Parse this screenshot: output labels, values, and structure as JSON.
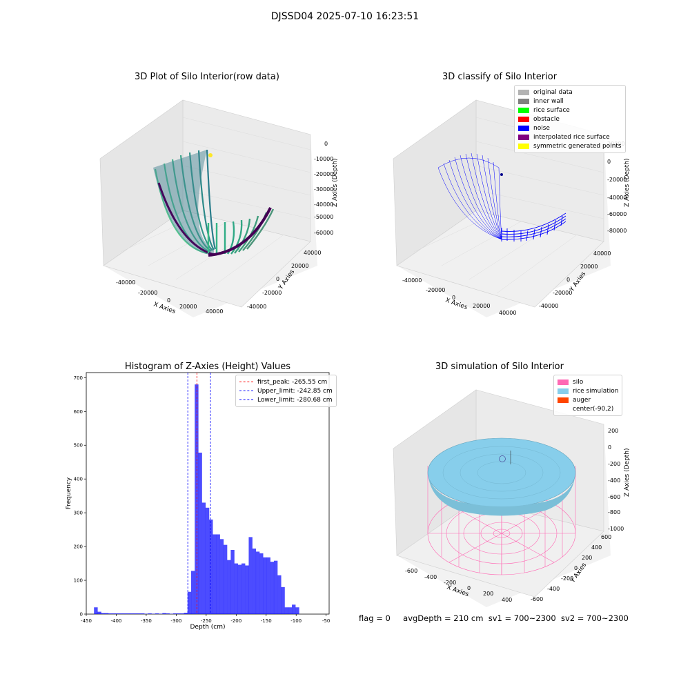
{
  "suptitle": "DJSSD04 2025-07-10 16:23:51",
  "panels": {
    "raw": {
      "title": "3D Plot of Silo Interior(row data)",
      "xlabel": "X Axies",
      "ylabel": "Y Axies",
      "zlabel": "Z Axies (Depth)",
      "xticks": [
        "-40000",
        "-20000",
        "0",
        "20000",
        "40000"
      ],
      "yticks": [
        "40000",
        "20000",
        "0",
        "-20000",
        "-40000"
      ],
      "zticks": [
        "0",
        "-10000",
        "-20000",
        "-30000",
        "-40000",
        "-50000",
        "-60000"
      ]
    },
    "classify": {
      "title": "3D classify of Silo Interior",
      "xlabel": "X Axies",
      "ylabel": "Y Axies",
      "zlabel": "Z Axies (Depth)",
      "xticks": [
        "-40000",
        "-20000",
        "0",
        "20000",
        "40000"
      ],
      "yticks": [
        "40000",
        "20000",
        "0",
        "-20000",
        "-40000"
      ],
      "zticks": [
        "20000",
        "0",
        "-20000",
        "-40000",
        "-60000",
        "-80000"
      ],
      "legend": [
        {
          "label": "original data",
          "color": "#b3b3b3"
        },
        {
          "label": "inner wall",
          "color": "#808080"
        },
        {
          "label": "rice surface",
          "color": "#00ff00"
        },
        {
          "label": "obstacle",
          "color": "#ff0000"
        },
        {
          "label": "noise",
          "color": "#0000ff"
        },
        {
          "label": "interpolated rice surface",
          "color": "#800080"
        },
        {
          "label": "symmetric generated points",
          "color": "#ffff00"
        }
      ]
    },
    "simulation": {
      "title": "3D simulation of Silo Interior",
      "xlabel": "X Axies",
      "ylabel": "Y Axies",
      "zlabel": "Z Axies (Depth)",
      "xticks": [
        "-600",
        "-400",
        "-200",
        "0",
        "200",
        "400"
      ],
      "yticks": [
        "600",
        "400",
        "200",
        "0",
        "-200",
        "-400",
        "-600"
      ],
      "zticks": [
        "200",
        "0",
        "-200",
        "-400",
        "-600",
        "-800",
        "-1000"
      ],
      "legend": [
        {
          "label": "silo",
          "color": "#ff69b4"
        },
        {
          "label": "rice simulation",
          "color": "#87ceeb"
        },
        {
          "label": "auger",
          "color": "#ff4500"
        },
        {
          "label": "center(-90,2)",
          "color": ""
        }
      ]
    }
  },
  "status": {
    "flag": "flag = 0",
    "avg_depth": "avgDepth = 210 cm",
    "sv1": "sv1 = 700~2300",
    "sv2": "sv2 = 700~2300"
  },
  "chart_data": {
    "type": "bar",
    "title": "Histogram of Z-Axies (Height) Values",
    "xlabel": "Depth (cm)",
    "ylabel": "Frequency",
    "xlim": [
      -450,
      -45
    ],
    "ylim": [
      0,
      715
    ],
    "xticks": [
      -450,
      -400,
      -350,
      -300,
      -250,
      -200,
      -150,
      -100,
      -50
    ],
    "yticks": [
      0,
      100,
      200,
      300,
      400,
      500,
      600,
      700
    ],
    "bar_color": "#0000ff",
    "bin_width": 6.2,
    "bins": [
      [
        -434,
        20
      ],
      [
        -428,
        7
      ],
      [
        -422,
        3
      ],
      [
        -416,
        3
      ],
      [
        -410,
        2
      ],
      [
        -404,
        2
      ],
      [
        -398,
        2
      ],
      [
        -392,
        2
      ],
      [
        -386,
        2
      ],
      [
        -380,
        2
      ],
      [
        -374,
        2
      ],
      [
        -368,
        2
      ],
      [
        -362,
        2
      ],
      [
        -356,
        2
      ],
      [
        -350,
        1
      ],
      [
        -344,
        2
      ],
      [
        -338,
        1
      ],
      [
        -332,
        2
      ],
      [
        -326,
        1
      ],
      [
        -320,
        3
      ],
      [
        -314,
        2
      ],
      [
        -308,
        1
      ],
      [
        -302,
        2
      ],
      [
        -296,
        2
      ],
      [
        -290,
        2
      ],
      [
        -284,
        4
      ],
      [
        -278,
        66
      ],
      [
        -272,
        128
      ],
      [
        -266,
        680
      ],
      [
        -260,
        478
      ],
      [
        -254,
        330
      ],
      [
        -248,
        315
      ],
      [
        -242,
        280
      ],
      [
        -236,
        236
      ],
      [
        -230,
        236
      ],
      [
        -224,
        222
      ],
      [
        -218,
        205
      ],
      [
        -212,
        160
      ],
      [
        -206,
        190
      ],
      [
        -200,
        150
      ],
      [
        -194,
        146
      ],
      [
        -188,
        150
      ],
      [
        -182,
        144
      ],
      [
        -176,
        228
      ],
      [
        -170,
        194
      ],
      [
        -164,
        185
      ],
      [
        -158,
        180
      ],
      [
        -152,
        168
      ],
      [
        -146,
        168
      ],
      [
        -140,
        155
      ],
      [
        -134,
        158
      ],
      [
        -128,
        115
      ],
      [
        -122,
        80
      ],
      [
        -116,
        20
      ],
      [
        -110,
        20
      ],
      [
        -104,
        28
      ],
      [
        -98,
        20
      ]
    ],
    "lines": [
      {
        "label": "first_peak: -265.55 cm",
        "x": -265.55,
        "color": "#ff0000"
      },
      {
        "label": "Upper_limit: -242.85 cm",
        "x": -242.85,
        "color": "#0000ff"
      },
      {
        "label": "Lower_limit: -280.68 cm",
        "x": -280.68,
        "color": "#0000ff"
      }
    ],
    "legend_position": "upper right"
  }
}
